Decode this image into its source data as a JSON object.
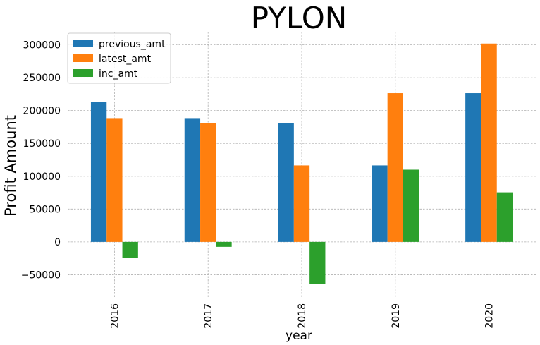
{
  "chart_data": {
    "type": "bar",
    "title": "PYLON",
    "xlabel": "year",
    "ylabel": "Profit Amount",
    "categories": [
      "2016",
      "2017",
      "2018",
      "2019",
      "2020"
    ],
    "series": [
      {
        "name": "previous_amt",
        "color": "#1f77b4",
        "values": [
          213000,
          188500,
          181000,
          116500,
          226500
        ]
      },
      {
        "name": "latest_amt",
        "color": "#ff7f0e",
        "values": [
          188500,
          181000,
          116500,
          226500,
          302000
        ]
      },
      {
        "name": "inc_amt",
        "color": "#2ca02c",
        "values": [
          -24500,
          -7500,
          -64500,
          110000,
          75500
        ]
      }
    ],
    "ylim": [
      -85000,
      320000
    ],
    "yticks": [
      -50000,
      0,
      50000,
      100000,
      150000,
      200000,
      250000,
      300000
    ],
    "ytick_labels": [
      "−50000",
      "0",
      "50000",
      "100000",
      "150000",
      "200000",
      "250000",
      "300000"
    ],
    "grid": true,
    "legend_position": "top-left"
  }
}
